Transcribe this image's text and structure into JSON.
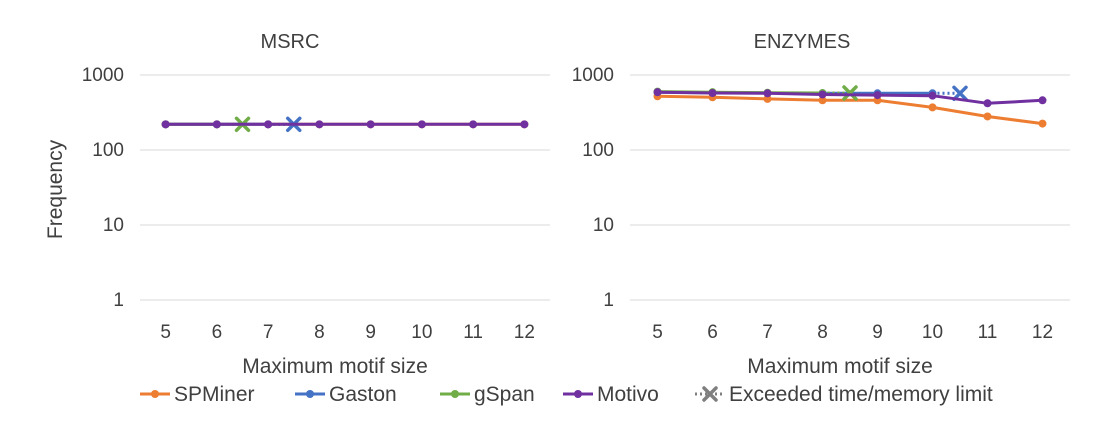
{
  "chart_data": [
    {
      "type": "line",
      "title": "MSRC",
      "xlabel": "Maximum motif size",
      "ylabel": "Frequency",
      "yscale": "log",
      "ylim": [
        1,
        1000
      ],
      "yticks": [
        1,
        10,
        100,
        1000
      ],
      "categories": [
        "5",
        "6",
        "7",
        "8",
        "9",
        "10",
        "11",
        "12"
      ],
      "series": [
        {
          "name": "SPMiner",
          "color": "#ed7d31",
          "values": [
            220,
            220,
            220,
            220,
            220,
            220,
            220,
            220
          ]
        },
        {
          "name": "Gaston",
          "color": "#4472c4",
          "values": [
            220,
            220,
            220,
            null,
            null,
            null,
            null,
            null
          ],
          "exceeded_at": 7.5
        },
        {
          "name": "gSpan",
          "color": "#70ad47",
          "values": [
            220,
            220,
            null,
            null,
            null,
            null,
            null,
            null
          ],
          "exceeded_at": 6.5
        },
        {
          "name": "Motivo",
          "color": "#7030a0",
          "values": [
            220,
            220,
            220,
            220,
            220,
            220,
            220,
            220
          ]
        }
      ]
    },
    {
      "type": "line",
      "title": "ENZYMES",
      "xlabel": "Maximum motif size",
      "ylabel": "",
      "yscale": "log",
      "ylim": [
        1,
        1000
      ],
      "yticks": [
        1,
        10,
        100,
        1000
      ],
      "categories": [
        "5",
        "6",
        "7",
        "8",
        "9",
        "10",
        "11",
        "12"
      ],
      "series": [
        {
          "name": "SPMiner",
          "color": "#ed7d31",
          "values": [
            520,
            505,
            480,
            460,
            460,
            370,
            280,
            225
          ]
        },
        {
          "name": "Gaston",
          "color": "#4472c4",
          "values": [
            590,
            580,
            575,
            570,
            570,
            570,
            null,
            null
          ],
          "exceeded_at": 10.5
        },
        {
          "name": "gSpan",
          "color": "#70ad47",
          "values": [
            600,
            590,
            580,
            575,
            null,
            null,
            null,
            null
          ],
          "exceeded_at": 8.5
        },
        {
          "name": "Motivo",
          "color": "#7030a0",
          "values": [
            590,
            575,
            570,
            550,
            540,
            530,
            420,
            460
          ]
        }
      ]
    }
  ],
  "legend": {
    "placement": "bottom",
    "items": [
      {
        "label": "SPMiner",
        "color": "#ed7d31",
        "style": "line-marker"
      },
      {
        "label": "Gaston",
        "color": "#4472c4",
        "style": "line-marker"
      },
      {
        "label": "gSpan",
        "color": "#70ad47",
        "style": "line-marker"
      },
      {
        "label": "Motivo",
        "color": "#7030a0",
        "style": "line-marker"
      },
      {
        "label": "Exceeded time/memory limit",
        "color": "#7f7f7f",
        "style": "dotted-x"
      }
    ]
  }
}
